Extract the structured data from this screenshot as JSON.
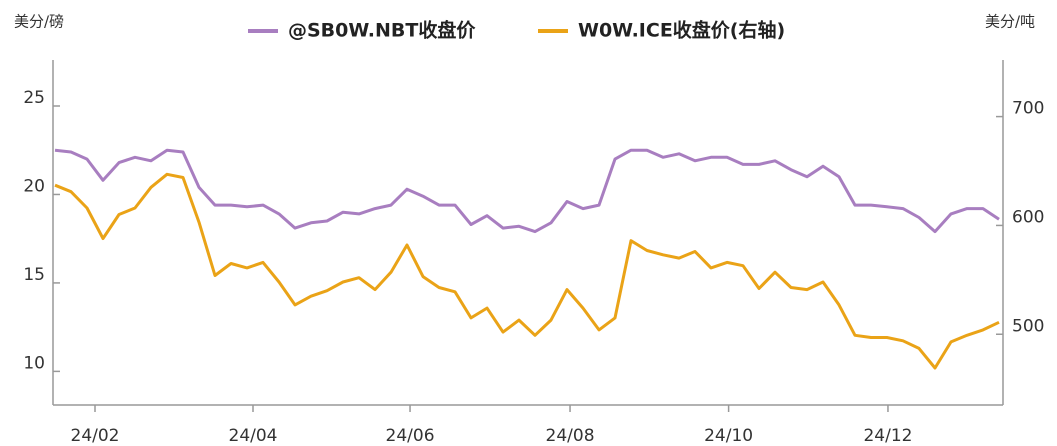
{
  "chart_data": {
    "type": "line",
    "y_label": "美分/磅",
    "y2_label": "美分/吨",
    "series": [
      {
        "name": "@SB0W.NBT收盘价",
        "color": "#a87ec0",
        "axis": "y",
        "values": [
          22.5,
          22.4,
          22.0,
          20.8,
          21.8,
          22.1,
          21.9,
          22.5,
          22.4,
          20.4,
          19.4,
          19.4,
          19.3,
          19.4,
          18.9,
          18.1,
          18.4,
          18.5,
          19.0,
          18.9,
          19.2,
          19.4,
          20.3,
          19.9,
          19.4,
          19.4,
          18.3,
          18.8,
          18.1,
          18.2,
          17.9,
          18.4,
          19.6,
          19.2,
          19.4,
          22.0,
          22.5,
          22.5,
          22.1,
          22.3,
          21.9,
          22.1,
          22.1,
          21.7,
          21.7,
          21.9,
          21.4,
          21.0,
          21.6,
          21.0,
          19.4,
          19.4,
          19.3,
          19.2,
          18.7,
          17.9,
          18.9,
          19.2,
          19.2,
          18.6
        ]
      },
      {
        "name": "W0W.ICE收盘价(右轴)",
        "color": "#eaa317",
        "axis": "y2",
        "values": [
          637,
          631,
          616,
          588,
          610,
          616,
          635,
          647,
          644,
          603,
          554,
          565,
          561,
          566,
          548,
          527,
          535,
          540,
          548,
          552,
          541,
          557,
          582,
          553,
          543,
          539,
          515,
          524,
          502,
          513,
          499,
          513,
          541,
          524,
          504,
          515,
          586,
          577,
          573,
          570,
          576,
          561,
          566,
          563,
          542,
          557,
          543,
          541,
          548,
          527,
          499,
          497,
          497,
          494,
          487,
          469,
          493,
          499,
          504,
          511
        ]
      }
    ],
    "xlim": [
      -0.125,
      59.25
    ],
    "xticks": [
      {
        "value": 2.5,
        "label": "24/02"
      },
      {
        "value": 12.375,
        "label": "24/04"
      },
      {
        "value": 22.19,
        "label": "24/06"
      },
      {
        "value": 32.19,
        "label": "24/08"
      },
      {
        "value": 42.1,
        "label": "24/10"
      },
      {
        "value": 52.06,
        "label": "24/12"
      }
    ],
    "ylim": [
      8.1,
      27.6
    ],
    "yticks": [
      10,
      15,
      20,
      25
    ],
    "y2lim": [
      435,
      752
    ],
    "y2ticks": [
      500,
      600,
      700
    ]
  }
}
